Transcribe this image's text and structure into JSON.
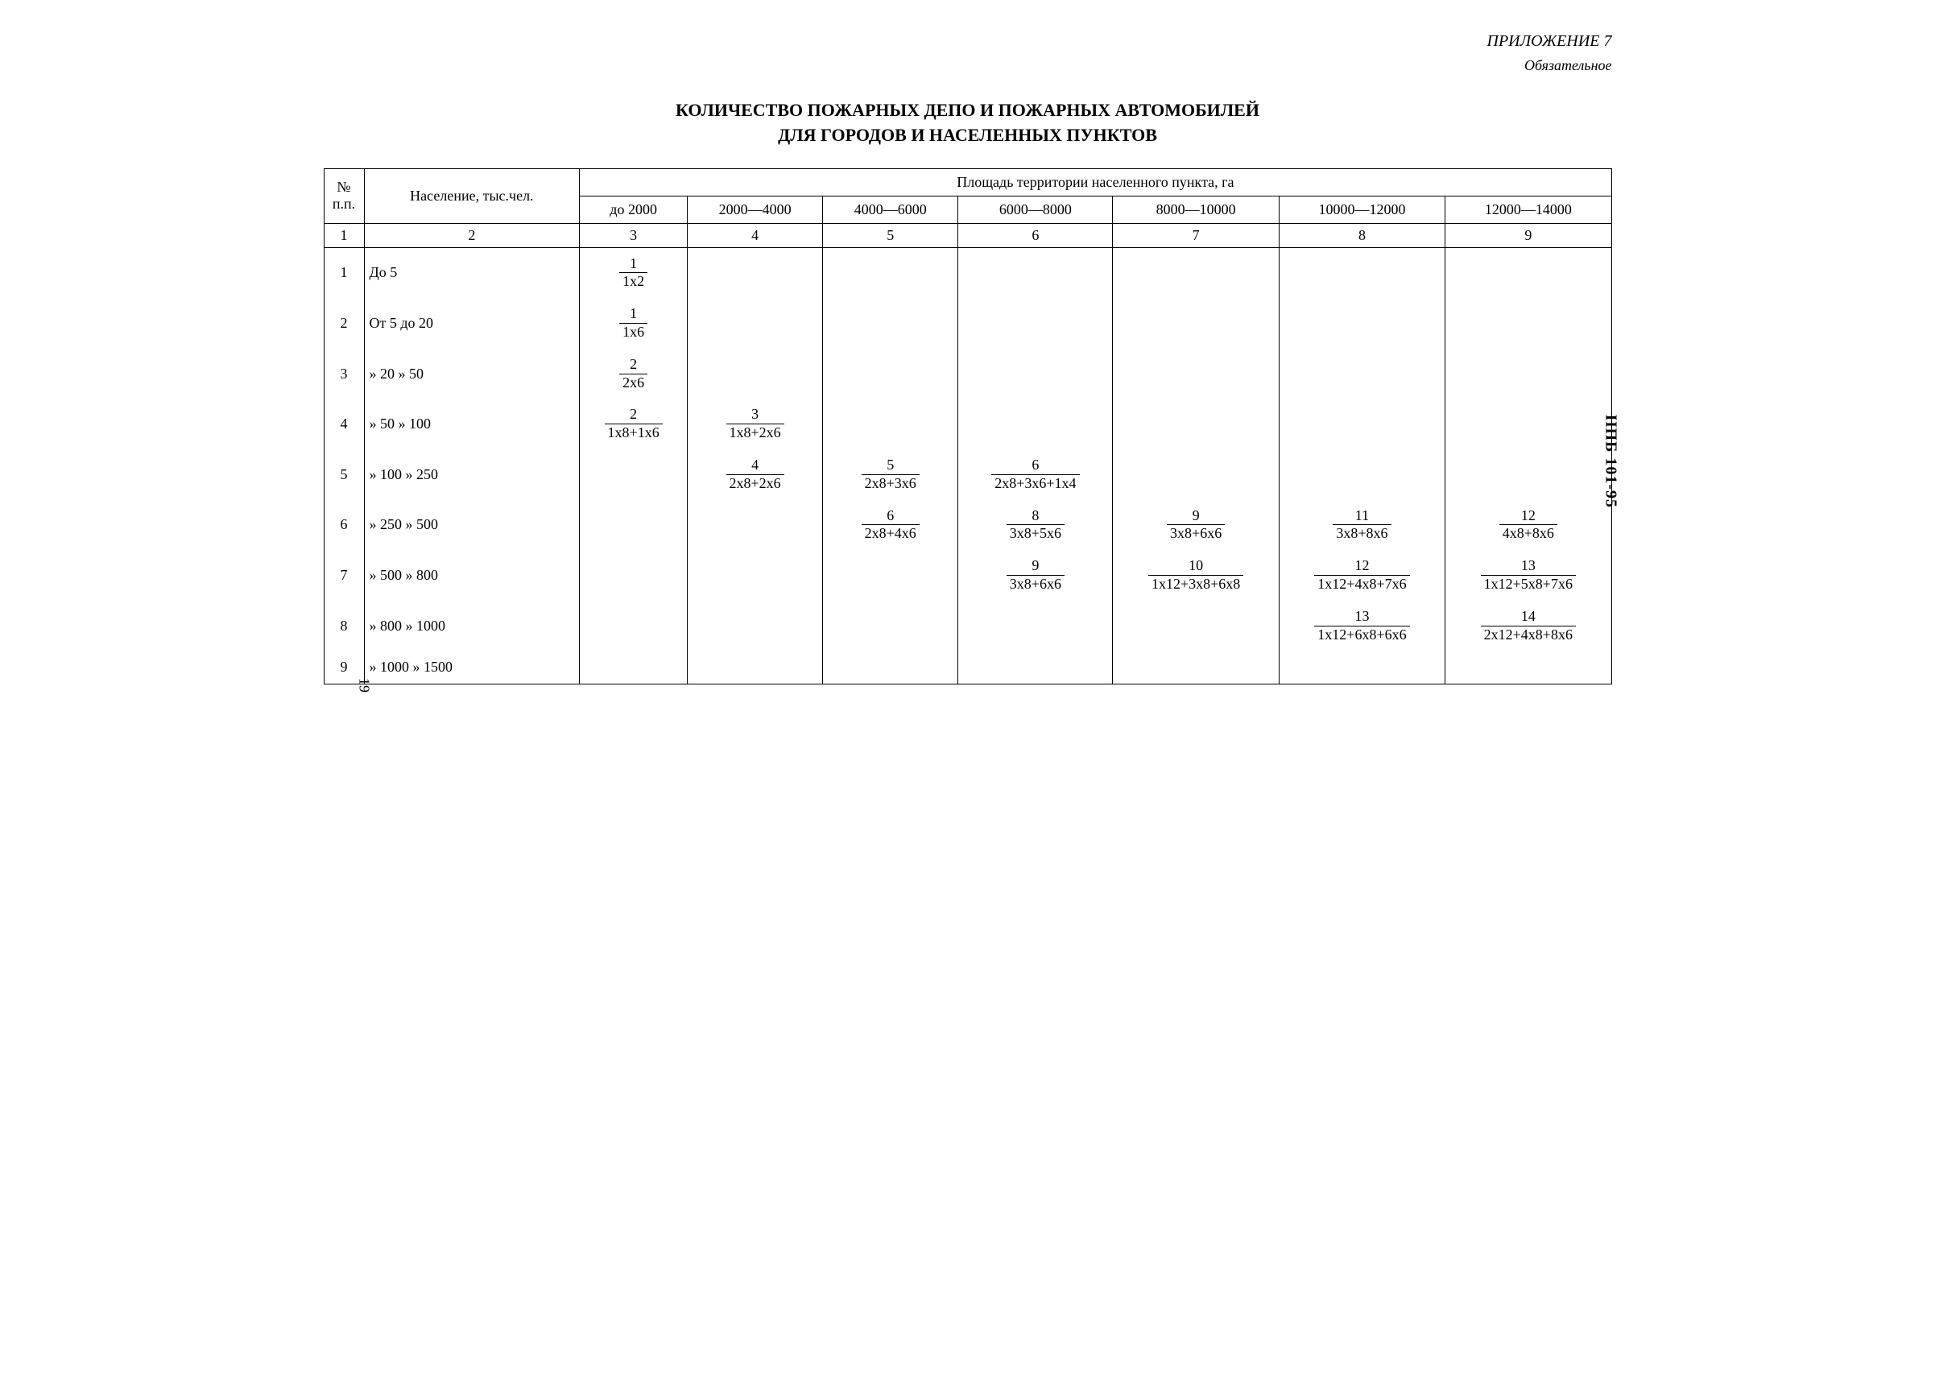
{
  "appendix": "ПРИЛОЖЕНИЕ 7",
  "mandatory": "Обязательное",
  "title_line1": "КОЛИЧЕСТВО ПОЖАРНЫХ ДЕПО И ПОЖАРНЫХ АВТОМОБИЛЕЙ",
  "title_line2": "ДЛЯ ГОРОДОВ И НАСЕЛЕННЫХ ПУНКТОВ",
  "doc_code": "НПБ 101-95",
  "page_number": "19",
  "header": {
    "col_no": "№ п.п.",
    "col_pop": "Население, тыс.чел.",
    "area_span": "Площадь территории населенного пункта, га",
    "areas": [
      "до 2000",
      "2000—4000",
      "4000—6000",
      "6000—8000",
      "8000—10000",
      "10000—12000",
      "12000—14000"
    ],
    "colnums": [
      "1",
      "2",
      "3",
      "4",
      "5",
      "6",
      "7",
      "8",
      "9"
    ]
  },
  "rows": [
    {
      "n": "1",
      "pop": "До 5",
      "cells": [
        {
          "num": "1",
          "den": "1x2"
        },
        null,
        null,
        null,
        null,
        null,
        null
      ]
    },
    {
      "n": "2",
      "pop": "От 5 до 20",
      "cells": [
        {
          "num": "1",
          "den": "1x6"
        },
        null,
        null,
        null,
        null,
        null,
        null
      ]
    },
    {
      "n": "3",
      "pop": "» 20 » 50",
      "cells": [
        {
          "num": "2",
          "den": "2x6"
        },
        null,
        null,
        null,
        null,
        null,
        null
      ]
    },
    {
      "n": "4",
      "pop": "» 50 » 100",
      "cells": [
        {
          "num": "2",
          "den": "1x8+1x6"
        },
        {
          "num": "3",
          "den": "1x8+2x6"
        },
        null,
        null,
        null,
        null,
        null
      ]
    },
    {
      "n": "5",
      "pop": "» 100 » 250",
      "cells": [
        null,
        {
          "num": "4",
          "den": "2x8+2x6"
        },
        {
          "num": "5",
          "den": "2x8+3x6"
        },
        {
          "num": "6",
          "den": "2x8+3x6+1x4"
        },
        null,
        null,
        null
      ]
    },
    {
      "n": "6",
      "pop": "» 250 » 500",
      "cells": [
        null,
        null,
        {
          "num": "6",
          "den": "2x8+4x6"
        },
        {
          "num": "8",
          "den": "3x8+5x6"
        },
        {
          "num": "9",
          "den": "3x8+6x6"
        },
        {
          "num": "11",
          "den": "3x8+8x6"
        },
        {
          "num": "12",
          "den": "4x8+8x6"
        }
      ]
    },
    {
      "n": "7",
      "pop": "» 500 » 800",
      "cells": [
        null,
        null,
        null,
        {
          "num": "9",
          "den": "3x8+6x6"
        },
        {
          "num": "10",
          "den": "1x12+3x8+6x8"
        },
        {
          "num": "12",
          "den": "1x12+4x8+7x6"
        },
        {
          "num": "13",
          "den": "1x12+5x8+7x6"
        }
      ]
    },
    {
      "n": "8",
      "pop": "» 800 » 1000",
      "cells": [
        null,
        null,
        null,
        null,
        null,
        {
          "num": "13",
          "den": "1x12+6x8+6x6"
        },
        {
          "num": "14",
          "den": "2x12+4x8+8x6"
        }
      ]
    },
    {
      "n": "9",
      "pop": "» 1000 » 1500",
      "cells": [
        null,
        null,
        null,
        null,
        null,
        null,
        null
      ]
    }
  ],
  "styling": {
    "font_family": "Times New Roman",
    "body_fontsize_pt": 14,
    "title_fontsize_pt": 16,
    "title_weight": "bold",
    "border_color": "#000000",
    "background_color": "#ffffff",
    "text_color": "#000000"
  }
}
